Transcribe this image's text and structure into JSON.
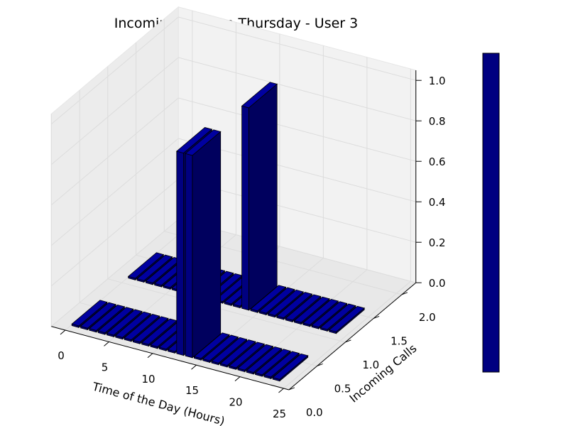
{
  "chart_data": {
    "type": "bar3d",
    "title": "Incoming Calls on Thursday - User 3",
    "xlabel": "Time of the Day (Hours)",
    "ylabel": "Incoming Calls",
    "zlabel": "",
    "xlim": [
      0,
      25
    ],
    "ylim": [
      0,
      2.0
    ],
    "zlim": [
      0,
      1.0
    ],
    "x_ticks": [
      "0",
      "5",
      "10",
      "15",
      "20",
      "25"
    ],
    "y_ticks": [
      "0.0",
      "0.5",
      "1.0",
      "1.5",
      "2.0"
    ],
    "z_ticks": [
      "0.0",
      "0.2",
      "0.4",
      "0.6",
      "0.8",
      "1.0"
    ],
    "grid": true,
    "bar_color": "#000080",
    "colorbar": true,
    "hours": [
      0,
      1,
      2,
      3,
      4,
      5,
      6,
      7,
      8,
      9,
      10,
      11,
      12,
      13,
      14,
      15,
      16,
      17,
      18,
      19,
      20,
      21,
      22,
      23
    ],
    "series": [
      {
        "y": 0,
        "values": [
          0,
          0,
          0,
          0,
          0,
          0,
          0,
          0,
          0,
          0,
          0,
          0,
          1,
          1,
          0,
          0,
          0,
          0,
          0,
          0,
          0,
          0,
          0,
          0
        ]
      },
      {
        "y": 1,
        "values": [
          0,
          0,
          0,
          0,
          0,
          0,
          0,
          0,
          0,
          0,
          0,
          0,
          0,
          1,
          0,
          0,
          0,
          0,
          0,
          0,
          0,
          0,
          0,
          0
        ]
      }
    ]
  }
}
